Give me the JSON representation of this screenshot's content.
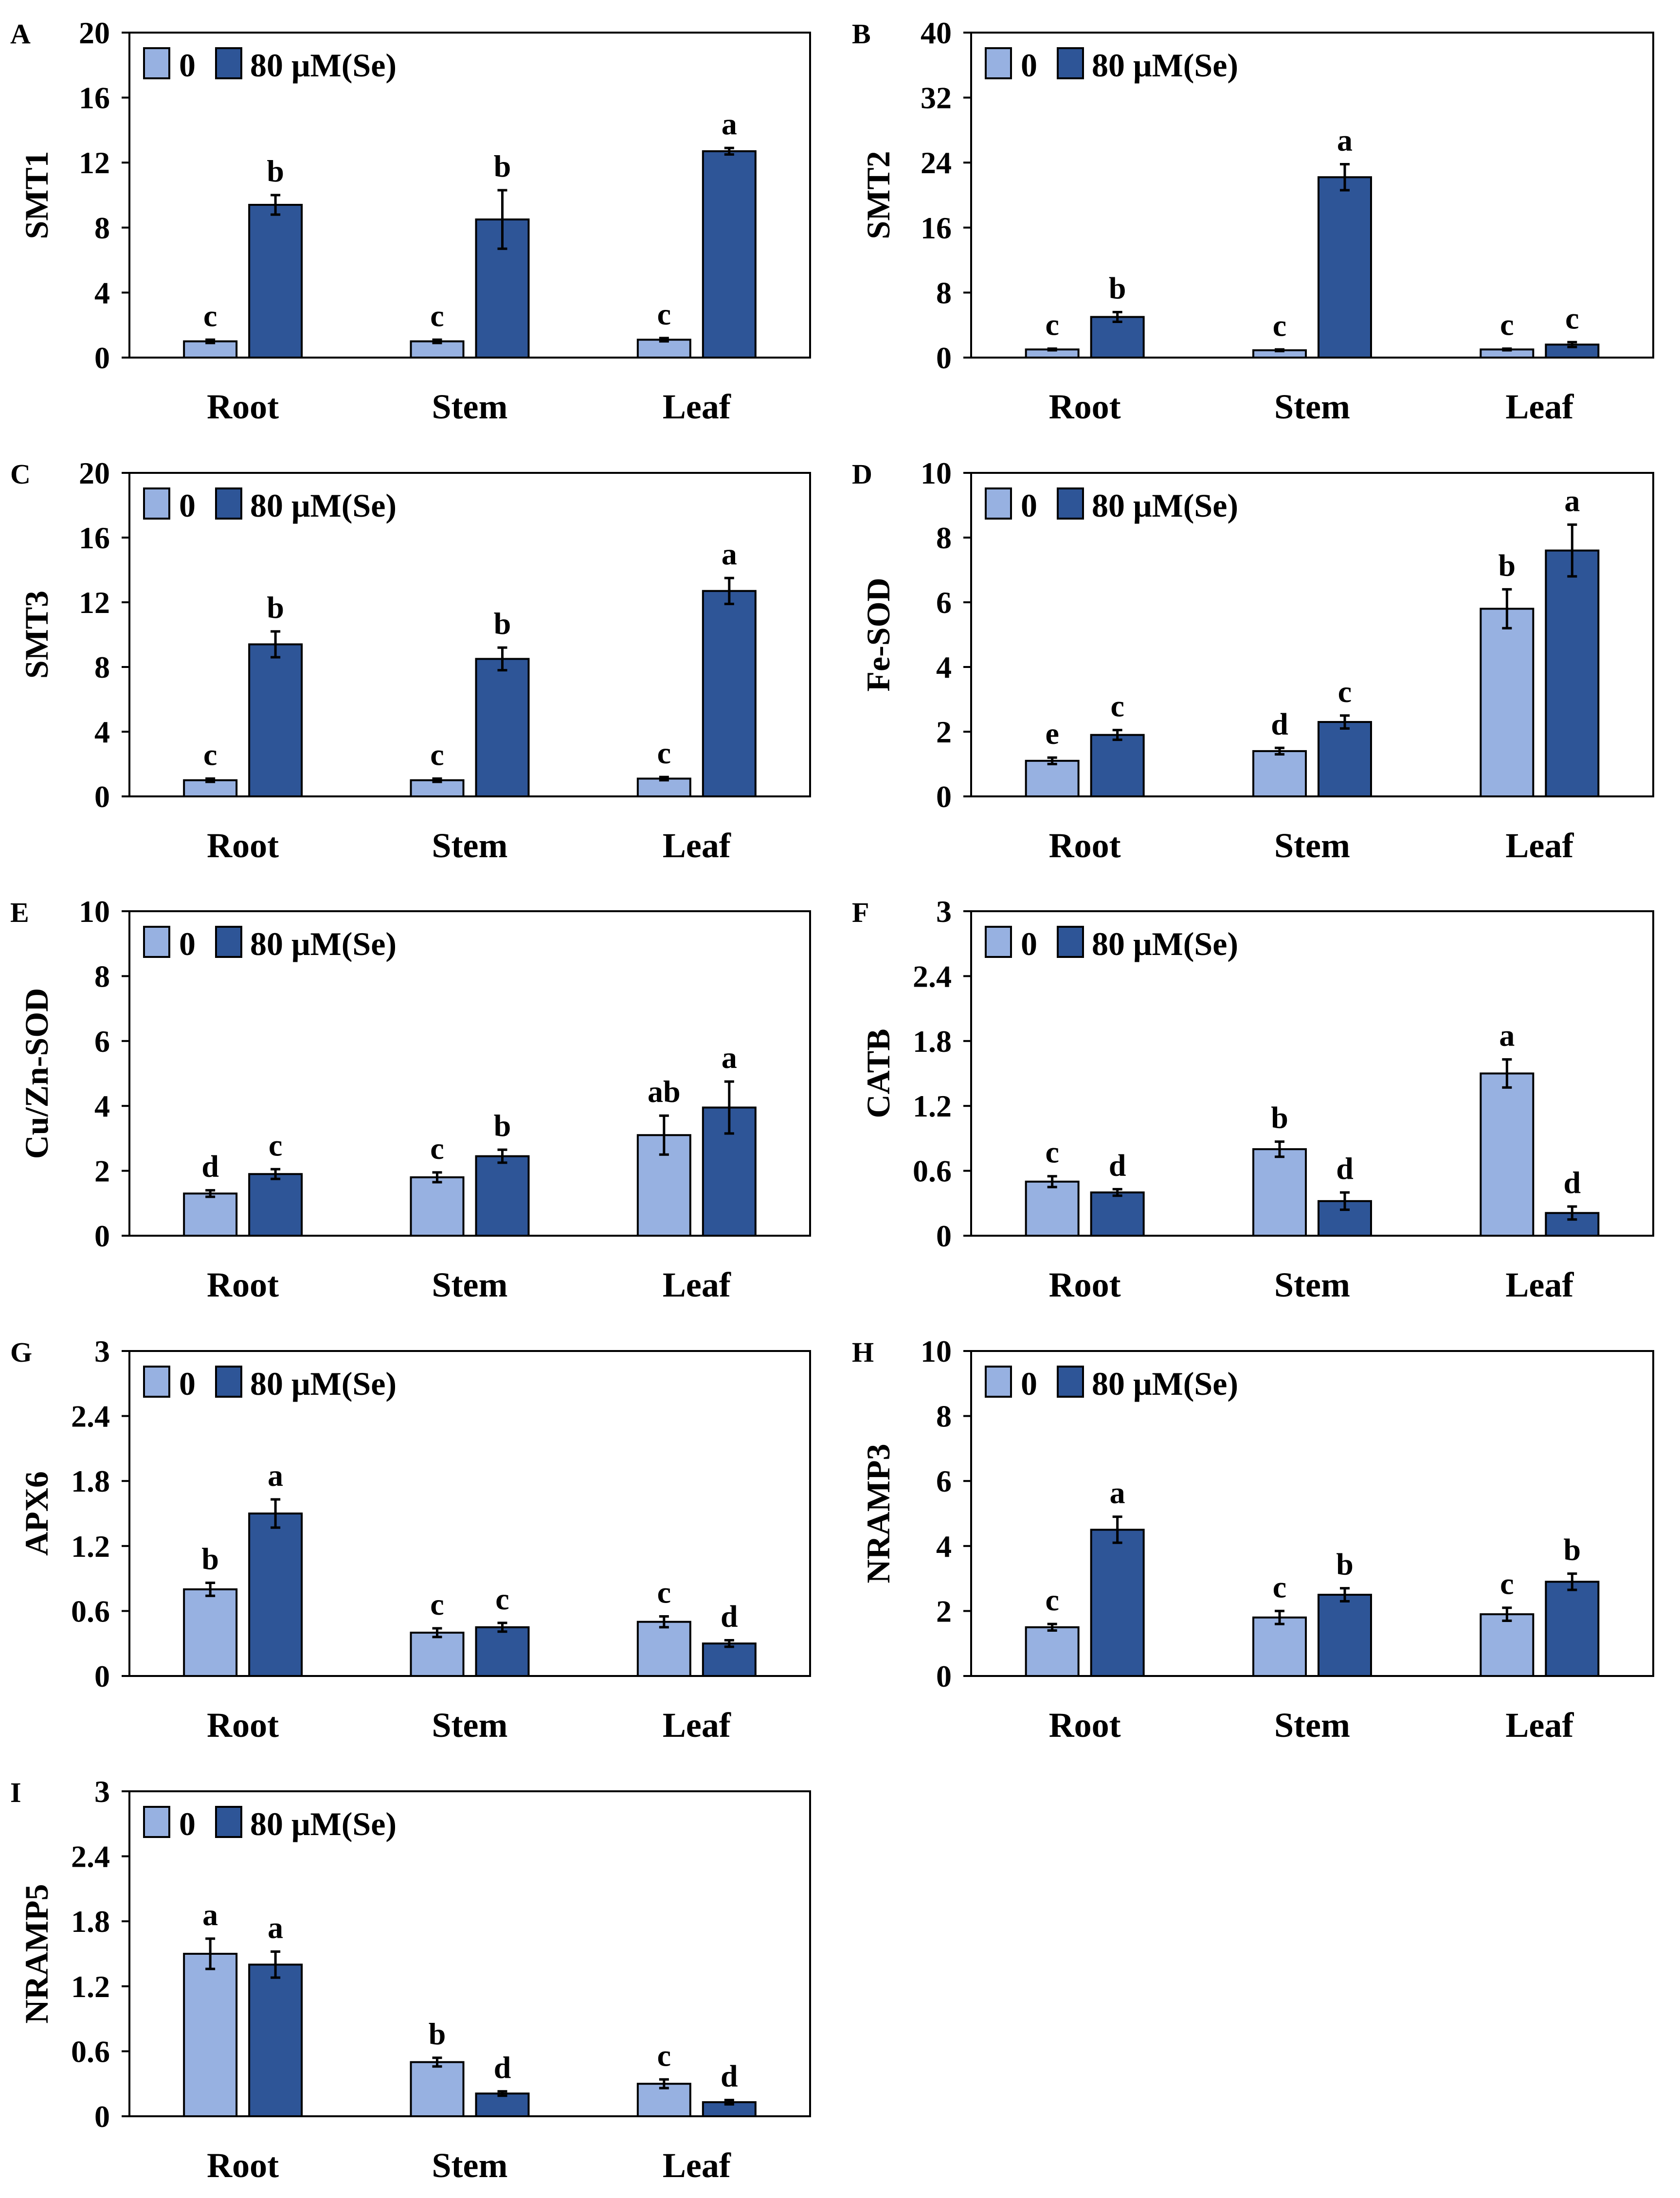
{
  "colors": {
    "control": "#97B1E1",
    "treated": "#2E5597",
    "stroke": "#000000"
  },
  "chart_data": [
    {
      "type": "bar",
      "panel": "A",
      "ylabel": "SMT1",
      "ylim": [
        0,
        20
      ],
      "yticks": [
        "0",
        "4",
        "8",
        "12",
        "16",
        "20"
      ],
      "categories": [
        "Root",
        "Stem",
        "Leaf"
      ],
      "legend_labels": [
        "0",
        "80 μM(Se)"
      ],
      "series": [
        {
          "name": "0",
          "values": [
            1.0,
            1.0,
            1.1
          ],
          "errors": [
            0.1,
            0.1,
            0.1
          ],
          "letters": [
            "c",
            "c",
            "c"
          ]
        },
        {
          "name": "80 μM(Se)",
          "values": [
            9.4,
            8.5,
            12.7
          ],
          "errors": [
            0.6,
            1.8,
            0.2
          ],
          "letters": [
            "b",
            "b",
            "a"
          ]
        }
      ]
    },
    {
      "type": "bar",
      "panel": "B",
      "ylabel": "SMT2",
      "ylim": [
        0,
        40
      ],
      "yticks": [
        "0",
        "8",
        "16",
        "24",
        "32",
        "40"
      ],
      "categories": [
        "Root",
        "Stem",
        "Leaf"
      ],
      "legend_labels": [
        "0",
        "80 μM(Se)"
      ],
      "series": [
        {
          "name": "0",
          "values": [
            1.0,
            0.9,
            1.0
          ],
          "errors": [
            0.1,
            0.1,
            0.1
          ],
          "letters": [
            "c",
            "c",
            "c"
          ]
        },
        {
          "name": "80 μM(Se)",
          "values": [
            5.0,
            22.2,
            1.6
          ],
          "errors": [
            0.6,
            1.6,
            0.3
          ],
          "letters": [
            "b",
            "a",
            "c"
          ]
        }
      ]
    },
    {
      "type": "bar",
      "panel": "C",
      "ylabel": "SMT3",
      "ylim": [
        0,
        20
      ],
      "yticks": [
        "0",
        "4",
        "8",
        "12",
        "16",
        "20"
      ],
      "categories": [
        "Root",
        "Stem",
        "Leaf"
      ],
      "legend_labels": [
        "0",
        "80 μM(Se)"
      ],
      "series": [
        {
          "name": "0",
          "values": [
            1.0,
            1.0,
            1.1
          ],
          "errors": [
            0.1,
            0.1,
            0.1
          ],
          "letters": [
            "c",
            "c",
            "c"
          ]
        },
        {
          "name": "80 μM(Se)",
          "values": [
            9.4,
            8.5,
            12.7
          ],
          "errors": [
            0.8,
            0.7,
            0.8
          ],
          "letters": [
            "b",
            "b",
            "a"
          ]
        }
      ]
    },
    {
      "type": "bar",
      "panel": "D",
      "ylabel": "Fe-SOD",
      "ylim": [
        0,
        10
      ],
      "yticks": [
        "0",
        "2",
        "4",
        "6",
        "8",
        "10"
      ],
      "categories": [
        "Root",
        "Stem",
        "Leaf"
      ],
      "legend_labels": [
        "0",
        "80 μM(Se)"
      ],
      "series": [
        {
          "name": "0",
          "values": [
            1.1,
            1.4,
            5.8
          ],
          "errors": [
            0.1,
            0.1,
            0.6
          ],
          "letters": [
            "e",
            "d",
            "b"
          ]
        },
        {
          "name": "80 μM(Se)",
          "values": [
            1.9,
            2.3,
            7.6
          ],
          "errors": [
            0.15,
            0.2,
            0.8
          ],
          "letters": [
            "c",
            "c",
            "a"
          ]
        }
      ]
    },
    {
      "type": "bar",
      "panel": "E",
      "ylabel": "Cu/Zn-SOD",
      "ylim": [
        0,
        10
      ],
      "yticks": [
        "0",
        "2",
        "4",
        "6",
        "8",
        "10"
      ],
      "categories": [
        "Root",
        "Stem",
        "Leaf"
      ],
      "legend_labels": [
        "0",
        "80 μM(Se)"
      ],
      "series": [
        {
          "name": "0",
          "values": [
            1.3,
            1.8,
            3.1
          ],
          "errors": [
            0.1,
            0.15,
            0.6
          ],
          "letters": [
            "d",
            "c",
            "ab"
          ]
        },
        {
          "name": "80 μM(Se)",
          "values": [
            1.9,
            2.45,
            3.95
          ],
          "errors": [
            0.15,
            0.2,
            0.8
          ],
          "letters": [
            "c",
            "b",
            "a"
          ]
        }
      ]
    },
    {
      "type": "bar",
      "panel": "F",
      "ylabel": "CATB",
      "ylim": [
        0,
        3
      ],
      "yticks": [
        "0",
        "0.6",
        "1.2",
        "1.8",
        "2.4",
        "3"
      ],
      "categories": [
        "Root",
        "Stem",
        "Leaf"
      ],
      "legend_labels": [
        "0",
        "80 μM(Se)"
      ],
      "series": [
        {
          "name": "0",
          "values": [
            0.5,
            0.8,
            1.5
          ],
          "errors": [
            0.05,
            0.07,
            0.13
          ],
          "letters": [
            "c",
            "b",
            "a"
          ]
        },
        {
          "name": "80 μM(Se)",
          "values": [
            0.4,
            0.32,
            0.21
          ],
          "errors": [
            0.03,
            0.08,
            0.06
          ],
          "letters": [
            "d",
            "d",
            "d"
          ]
        }
      ]
    },
    {
      "type": "bar",
      "panel": "G",
      "ylabel": "APX6",
      "ylim": [
        0,
        3
      ],
      "yticks": [
        "0",
        "0.6",
        "1.2",
        "1.8",
        "2.4",
        "3"
      ],
      "categories": [
        "Root",
        "Stem",
        "Leaf"
      ],
      "legend_labels": [
        "0",
        "80 μM(Se)"
      ],
      "series": [
        {
          "name": "0",
          "values": [
            0.8,
            0.4,
            0.5
          ],
          "errors": [
            0.06,
            0.04,
            0.05
          ],
          "letters": [
            "b",
            "c",
            "c"
          ]
        },
        {
          "name": "80 μM(Se)",
          "values": [
            1.5,
            0.45,
            0.3
          ],
          "errors": [
            0.13,
            0.04,
            0.03
          ],
          "letters": [
            "a",
            "c",
            "d"
          ]
        }
      ]
    },
    {
      "type": "bar",
      "panel": "H",
      "ylabel": "NRAMP3",
      "ylim": [
        0,
        10
      ],
      "yticks": [
        "0",
        "2",
        "4",
        "6",
        "8",
        "10"
      ],
      "categories": [
        "Root",
        "Stem",
        "Leaf"
      ],
      "legend_labels": [
        "0",
        "80 μM(Se)"
      ],
      "series": [
        {
          "name": "0",
          "values": [
            1.5,
            1.8,
            1.9
          ],
          "errors": [
            0.1,
            0.2,
            0.2
          ],
          "letters": [
            "c",
            "c",
            "c"
          ]
        },
        {
          "name": "80 μM(Se)",
          "values": [
            4.5,
            2.5,
            2.9
          ],
          "errors": [
            0.4,
            0.2,
            0.25
          ],
          "letters": [
            "a",
            "b",
            "b"
          ]
        }
      ]
    },
    {
      "type": "bar",
      "panel": "I",
      "ylabel": "NRAMP5",
      "ylim": [
        0,
        3
      ],
      "yticks": [
        "0",
        "0.6",
        "1.2",
        "1.8",
        "2.4",
        "3"
      ],
      "categories": [
        "Root",
        "Stem",
        "Leaf"
      ],
      "legend_labels": [
        "0",
        "80 μM(Se)"
      ],
      "series": [
        {
          "name": "0",
          "values": [
            1.5,
            0.5,
            0.3
          ],
          "errors": [
            0.14,
            0.04,
            0.04
          ],
          "letters": [
            "a",
            "b",
            "c"
          ]
        },
        {
          "name": "80 μM(Se)",
          "values": [
            1.4,
            0.21,
            0.13
          ],
          "errors": [
            0.12,
            0.02,
            0.02
          ],
          "letters": [
            "a",
            "d",
            "d"
          ]
        }
      ]
    }
  ]
}
